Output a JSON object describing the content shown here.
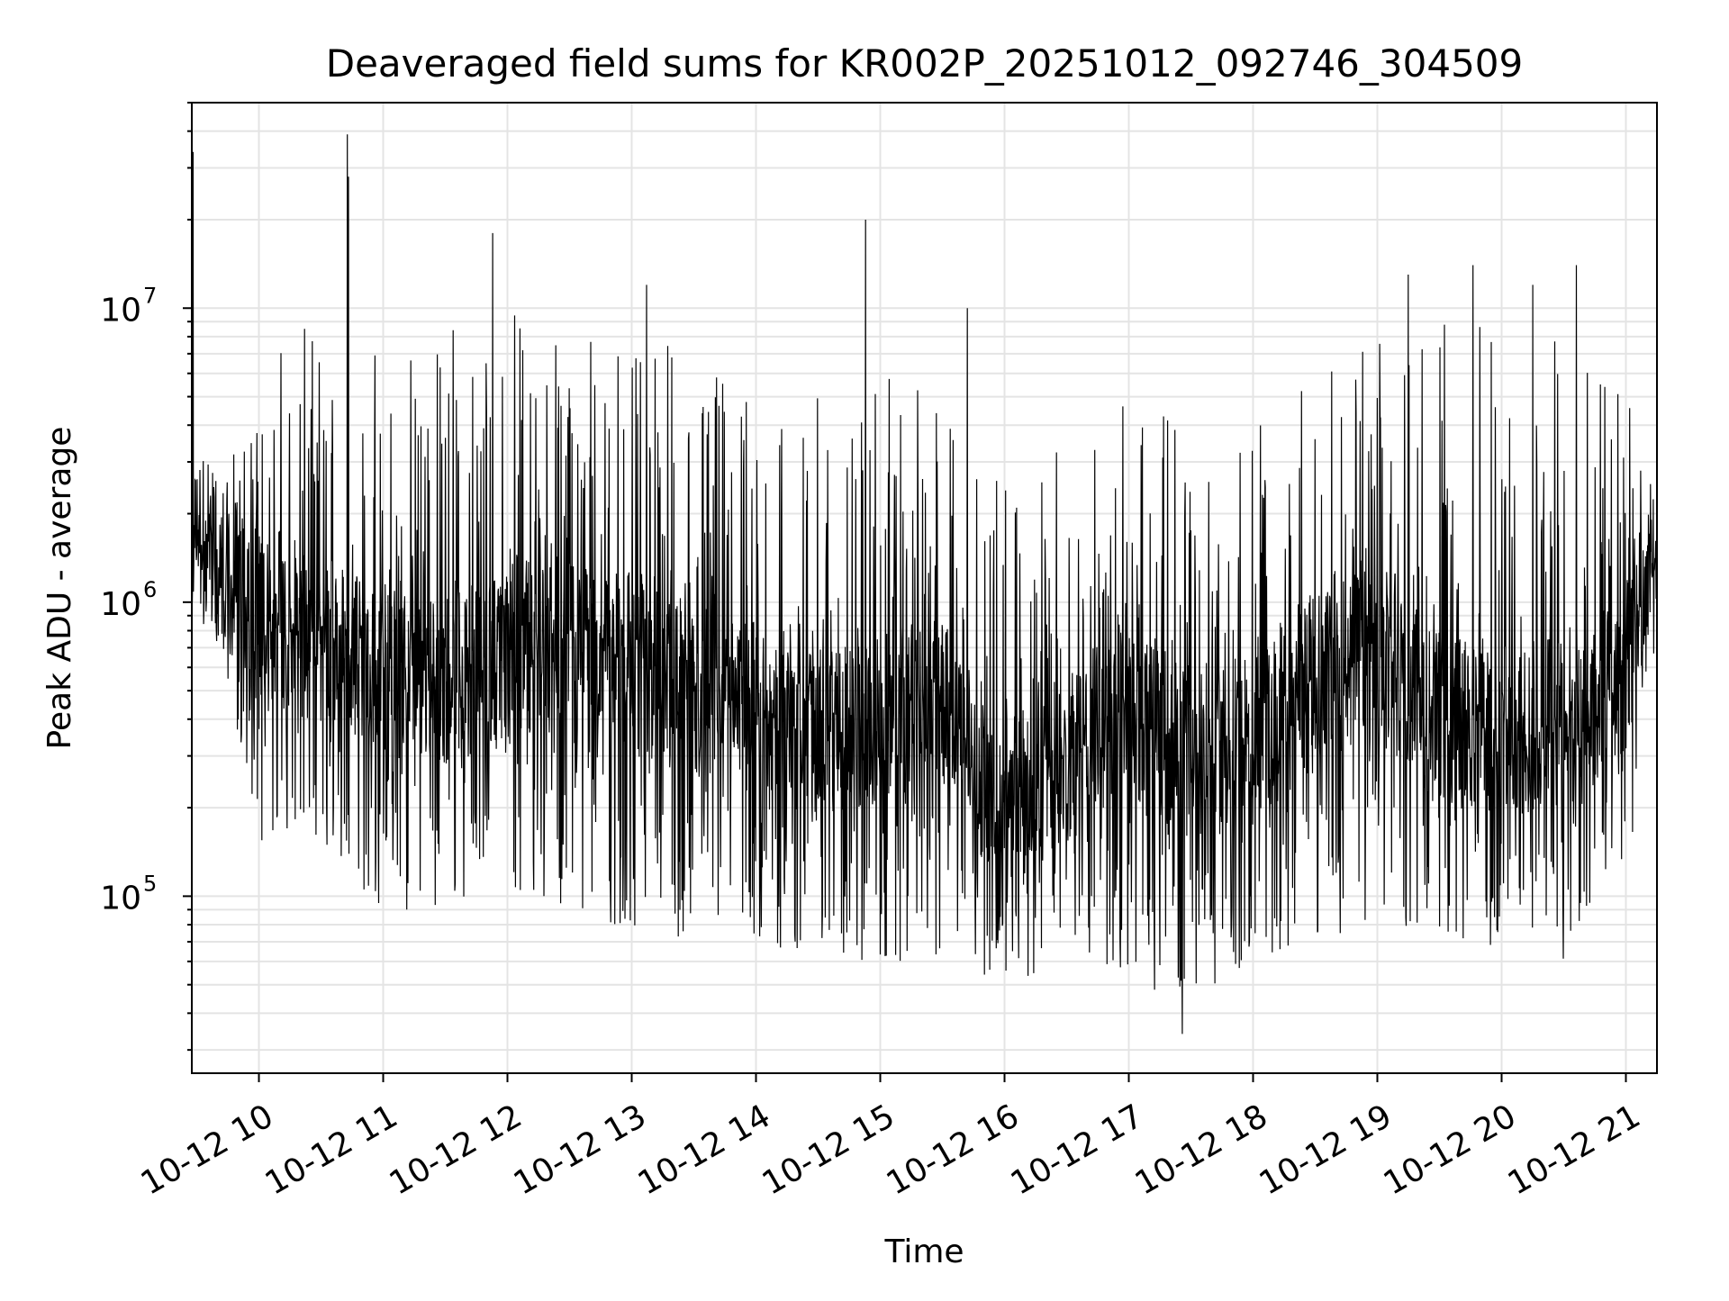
{
  "chart_data": {
    "type": "line",
    "title": "Deaveraged field sums for KR002P_20251012_092746_304509",
    "xlabel": "Time",
    "ylabel": "Peak ADU - average",
    "yscale": "log",
    "x_unit": "hour of day (2025-10-12)",
    "xlim": [
      9.46,
      21.25
    ],
    "ylim": [
      25000,
      50000000
    ],
    "x_ticks": [
      {
        "value": 10,
        "label": "10-12 10"
      },
      {
        "value": 11,
        "label": "10-12 11"
      },
      {
        "value": 12,
        "label": "10-12 12"
      },
      {
        "value": 13,
        "label": "10-12 13"
      },
      {
        "value": 14,
        "label": "10-12 14"
      },
      {
        "value": 15,
        "label": "10-12 15"
      },
      {
        "value": 16,
        "label": "10-12 16"
      },
      {
        "value": 17,
        "label": "10-12 17"
      },
      {
        "value": 18,
        "label": "10-12 18"
      },
      {
        "value": 19,
        "label": "10-12 19"
      },
      {
        "value": 20,
        "label": "10-12 20"
      },
      {
        "value": 21,
        "label": "10-12 21"
      }
    ],
    "y_ticks": [
      {
        "value": 100000,
        "base": "10",
        "exp": "5"
      },
      {
        "value": 1000000,
        "base": "10",
        "exp": "6"
      },
      {
        "value": 10000000,
        "base": "10",
        "exp": "7"
      }
    ],
    "grid": true,
    "series": [
      {
        "name": "deaveraged field sum",
        "color": "#000000",
        "points_description": "dense noisy trace sampled along envelope",
        "envelope": [
          {
            "x": 9.46,
            "median": 1800000,
            "low": 1000000,
            "high": 3000000
          },
          {
            "x": 9.7,
            "median": 1400000,
            "low": 700000,
            "high": 2500000
          },
          {
            "x": 10.0,
            "median": 900000,
            "low": 150000,
            "high": 7500000
          },
          {
            "x": 10.5,
            "median": 800000,
            "low": 150000,
            "high": 9000000
          },
          {
            "x": 11.0,
            "median": 600000,
            "low": 80000,
            "high": 8000000
          },
          {
            "x": 11.5,
            "median": 550000,
            "low": 90000,
            "high": 9000000
          },
          {
            "x": 12.0,
            "median": 700000,
            "low": 100000,
            "high": 10000000
          },
          {
            "x": 12.5,
            "median": 800000,
            "low": 80000,
            "high": 9000000
          },
          {
            "x": 13.0,
            "median": 650000,
            "low": 80000,
            "high": 9000000
          },
          {
            "x": 13.5,
            "median": 450000,
            "low": 70000,
            "high": 7000000
          },
          {
            "x": 14.0,
            "median": 450000,
            "low": 70000,
            "high": 6000000
          },
          {
            "x": 14.5,
            "median": 350000,
            "low": 60000,
            "high": 5000000
          },
          {
            "x": 15.0,
            "median": 400000,
            "low": 60000,
            "high": 6000000
          },
          {
            "x": 15.5,
            "median": 450000,
            "low": 60000,
            "high": 5000000
          },
          {
            "x": 16.0,
            "median": 200000,
            "low": 50000,
            "high": 3000000
          },
          {
            "x": 16.5,
            "median": 300000,
            "low": 60000,
            "high": 3500000
          },
          {
            "x": 17.0,
            "median": 450000,
            "low": 50000,
            "high": 5000000
          },
          {
            "x": 17.5,
            "median": 300000,
            "low": 45000,
            "high": 5000000
          },
          {
            "x": 18.0,
            "median": 350000,
            "low": 60000,
            "high": 5000000
          },
          {
            "x": 18.5,
            "median": 550000,
            "low": 70000,
            "high": 6000000
          },
          {
            "x": 19.0,
            "median": 700000,
            "low": 80000,
            "high": 8000000
          },
          {
            "x": 19.5,
            "median": 400000,
            "low": 70000,
            "high": 9000000
          },
          {
            "x": 20.0,
            "median": 350000,
            "low": 60000,
            "high": 9000000
          },
          {
            "x": 20.5,
            "median": 400000,
            "low": 60000,
            "high": 9000000
          },
          {
            "x": 21.0,
            "median": 600000,
            "low": 100000,
            "high": 5000000
          },
          {
            "x": 21.25,
            "median": 1600000,
            "low": 800000,
            "high": 3000000
          }
        ],
        "spikes": [
          {
            "x": 9.47,
            "y": 34000000
          },
          {
            "x": 10.71,
            "y": 39000000
          },
          {
            "x": 10.72,
            "y": 28000000
          },
          {
            "x": 11.88,
            "y": 18000000
          },
          {
            "x": 13.12,
            "y": 12000000
          },
          {
            "x": 14.88,
            "y": 20000000
          },
          {
            "x": 15.7,
            "y": 10000000
          },
          {
            "x": 19.77,
            "y": 14000000
          },
          {
            "x": 20.6,
            "y": 14000000
          },
          {
            "x": 19.25,
            "y": 13000000
          },
          {
            "x": 20.25,
            "y": 12000000
          },
          {
            "x": 17.43,
            "y": 34000
          }
        ]
      }
    ]
  }
}
